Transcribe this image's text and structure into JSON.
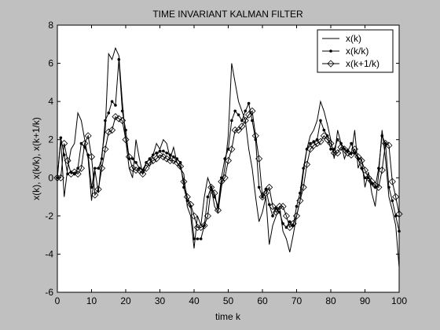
{
  "chart_data": {
    "type": "line",
    "title": "TIME INVARIANT KALMAN FILTER",
    "xlabel": "time k",
    "ylabel": "x(k), x(k/k), x(k+1/k)",
    "xlim": [
      0,
      100
    ],
    "ylim": [
      -6,
      8
    ],
    "xticks": [
      0,
      10,
      20,
      30,
      40,
      50,
      60,
      70,
      80,
      90,
      100
    ],
    "yticks": [
      -6,
      -4,
      -2,
      0,
      2,
      4,
      6,
      8
    ],
    "grid": false,
    "legend_position": "top-right",
    "x": [
      0,
      1,
      2,
      3,
      4,
      5,
      6,
      7,
      8,
      9,
      10,
      11,
      12,
      13,
      14,
      15,
      16,
      17,
      18,
      19,
      20,
      21,
      22,
      23,
      24,
      25,
      26,
      27,
      28,
      29,
      30,
      31,
      32,
      33,
      34,
      35,
      36,
      37,
      38,
      39,
      40,
      41,
      42,
      43,
      44,
      45,
      46,
      47,
      48,
      49,
      50,
      51,
      52,
      53,
      54,
      55,
      56,
      57,
      58,
      59,
      60,
      61,
      62,
      63,
      64,
      65,
      66,
      67,
      68,
      69,
      70,
      71,
      72,
      73,
      74,
      75,
      76,
      77,
      78,
      79,
      80,
      81,
      82,
      83,
      84,
      85,
      86,
      87,
      88,
      89,
      90,
      91,
      92,
      93,
      94,
      95,
      96,
      97,
      98,
      99,
      100
    ],
    "series": [
      {
        "name": "x(k)",
        "marker": "none",
        "values": [
          0,
          2.0,
          -1.0,
          0.5,
          1.5,
          1.8,
          3.4,
          3.0,
          2.0,
          1.0,
          -1.2,
          0.4,
          -0.8,
          1.2,
          2.5,
          6.5,
          6.2,
          6.8,
          6.4,
          4.0,
          2.0,
          0.5,
          0.0,
          2.0,
          1.0,
          0.2,
          0.8,
          0.6,
          1.2,
          1.8,
          1.5,
          2.0,
          1.8,
          1.0,
          1.6,
          0.8,
          0.5,
          0.2,
          -1.5,
          -2.0,
          -3.7,
          -2.0,
          -2.5,
          -1.0,
          0.0,
          -0.5,
          -1.5,
          -1.8,
          -0.5,
          0.5,
          2.2,
          6.0,
          5.0,
          4.0,
          3.5,
          3.0,
          1.5,
          0.5,
          -1.0,
          -2.3,
          -1.8,
          -1.0,
          -3.5,
          -2.5,
          -2.0,
          -1.5,
          -2.8,
          -3.2,
          -3.9,
          -3.0,
          -2.0,
          -1.2,
          0.3,
          1.5,
          2.2,
          2.5,
          3.0,
          4.0,
          3.5,
          2.8,
          2.0,
          1.0,
          2.5,
          1.8,
          1.0,
          1.5,
          1.2,
          2.5,
          0.5,
          1.0,
          -0.5,
          0.3,
          -0.8,
          -1.5,
          0.2,
          2.5,
          1.0,
          -1.0,
          -1.7,
          -2.5,
          -4.7
        ]
      },
      {
        "name": "x(k/k)",
        "marker": "dot",
        "values": [
          0,
          2.1,
          1.2,
          0.2,
          0.3,
          0.2,
          0.5,
          1.8,
          1.6,
          1.2,
          -0.5,
          0.5,
          0.5,
          1.0,
          3.0,
          3.4,
          4.0,
          3.8,
          6.2,
          3.5,
          2.5,
          1.0,
          1.0,
          0.8,
          0.5,
          0.4,
          0.8,
          1.0,
          1.2,
          1.3,
          1.4,
          1.4,
          1.3,
          1.2,
          1.1,
          1.0,
          0.8,
          -0.5,
          -1.2,
          -1.5,
          -3.2,
          -3.2,
          -3.2,
          -2.5,
          -1.0,
          -0.5,
          -1.0,
          -1.5,
          0.0,
          1.0,
          1.5,
          3.0,
          3.5,
          3.3,
          3.0,
          3.5,
          3.9,
          3.0,
          2.0,
          -0.5,
          -1.0,
          -0.6,
          -1.4,
          -2.0,
          -1.6,
          -1.8,
          -2.4,
          -2.6,
          -2.3,
          -2.5,
          -1.5,
          -0.8,
          0.5,
          1.5,
          1.8,
          1.9,
          2.0,
          3.0,
          2.5,
          2.2,
          1.5,
          1.5,
          2.0,
          1.8,
          1.5,
          1.4,
          1.8,
          1.3,
          1.0,
          0.5,
          0.0,
          0.0,
          -0.3,
          -0.5,
          0.5,
          2.2,
          1.8,
          -0.5,
          -1.2,
          -2.0,
          -2.8
        ]
      },
      {
        "name": "x(k+1/k)",
        "marker": "diamond",
        "values": [
          0,
          0,
          1.8,
          0.9,
          0.2,
          0.3,
          0.2,
          0.5,
          1.8,
          2.2,
          1.1,
          -0.9,
          -0.6,
          0.5,
          1.5,
          2.4,
          2.5,
          3.2,
          3.1,
          3.0,
          2.0,
          1.1,
          0.5,
          0.4,
          0.4,
          0.2,
          0.5,
          0.8,
          0.9,
          1.0,
          1.2,
          1.1,
          1.0,
          0.9,
          0.9,
          0.8,
          0.6,
          -0.2,
          -1.0,
          -1.4,
          -2.0,
          -2.6,
          -2.6,
          -2.5,
          -2.0,
          -0.5,
          -0.8,
          -1.7,
          -0.2,
          0.0,
          0.9,
          1.5,
          2.5,
          2.5,
          2.7,
          3.0,
          3.3,
          3.5,
          2.2,
          1.0,
          -1.0,
          -0.8,
          -0.5,
          -1.5,
          -1.8,
          -1.5,
          -1.5,
          -2.0,
          -2.6,
          -2.4,
          -2.0,
          -1.2,
          -0.5,
          0.7,
          1.5,
          1.7,
          1.8,
          1.9,
          2.2,
          2.0,
          1.8,
          1.3,
          1.3,
          1.6,
          1.5,
          1.3,
          1.2,
          1.5,
          1.1,
          0.9,
          0.4,
          0.0,
          -0.2,
          -0.4,
          -0.5,
          0.4,
          1.8,
          1.7,
          -0.2,
          -1.0,
          -1.9
        ]
      }
    ]
  }
}
